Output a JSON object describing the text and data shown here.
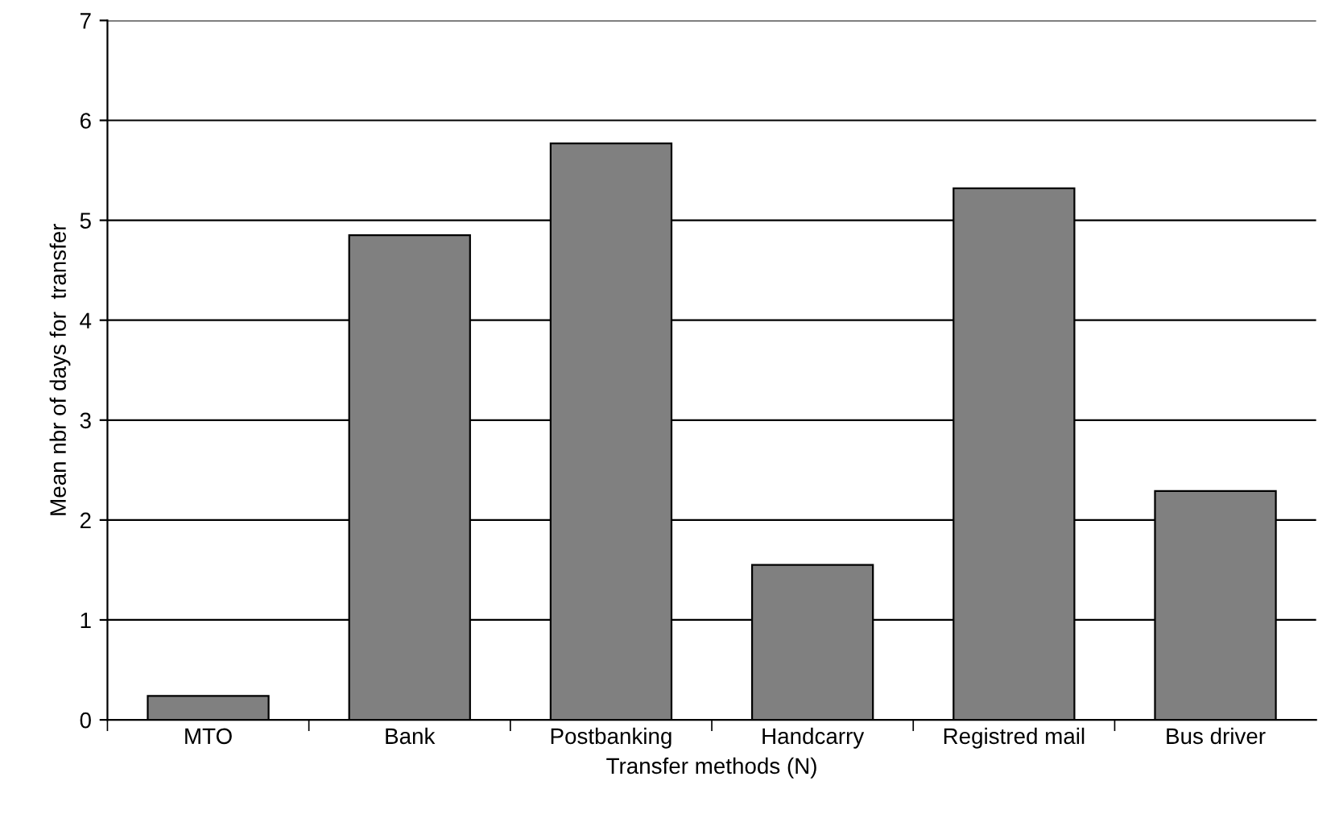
{
  "chart_data": {
    "type": "bar",
    "xlabel": "Transfer methods (N)",
    "ylabel": "Mean nbr of days for  transfer",
    "categories": [
      "MTO",
      "Bank",
      "Postbanking",
      "Handcarry",
      "Registred mail",
      "Bus driver"
    ],
    "values": [
      0.24,
      4.85,
      5.77,
      1.55,
      5.32,
      2.29
    ],
    "color": "#808080",
    "ylim": [
      0,
      7
    ],
    "yticks": [
      0,
      1,
      2,
      3,
      4,
      5,
      6,
      7
    ],
    "grid": "y",
    "legend": false
  }
}
